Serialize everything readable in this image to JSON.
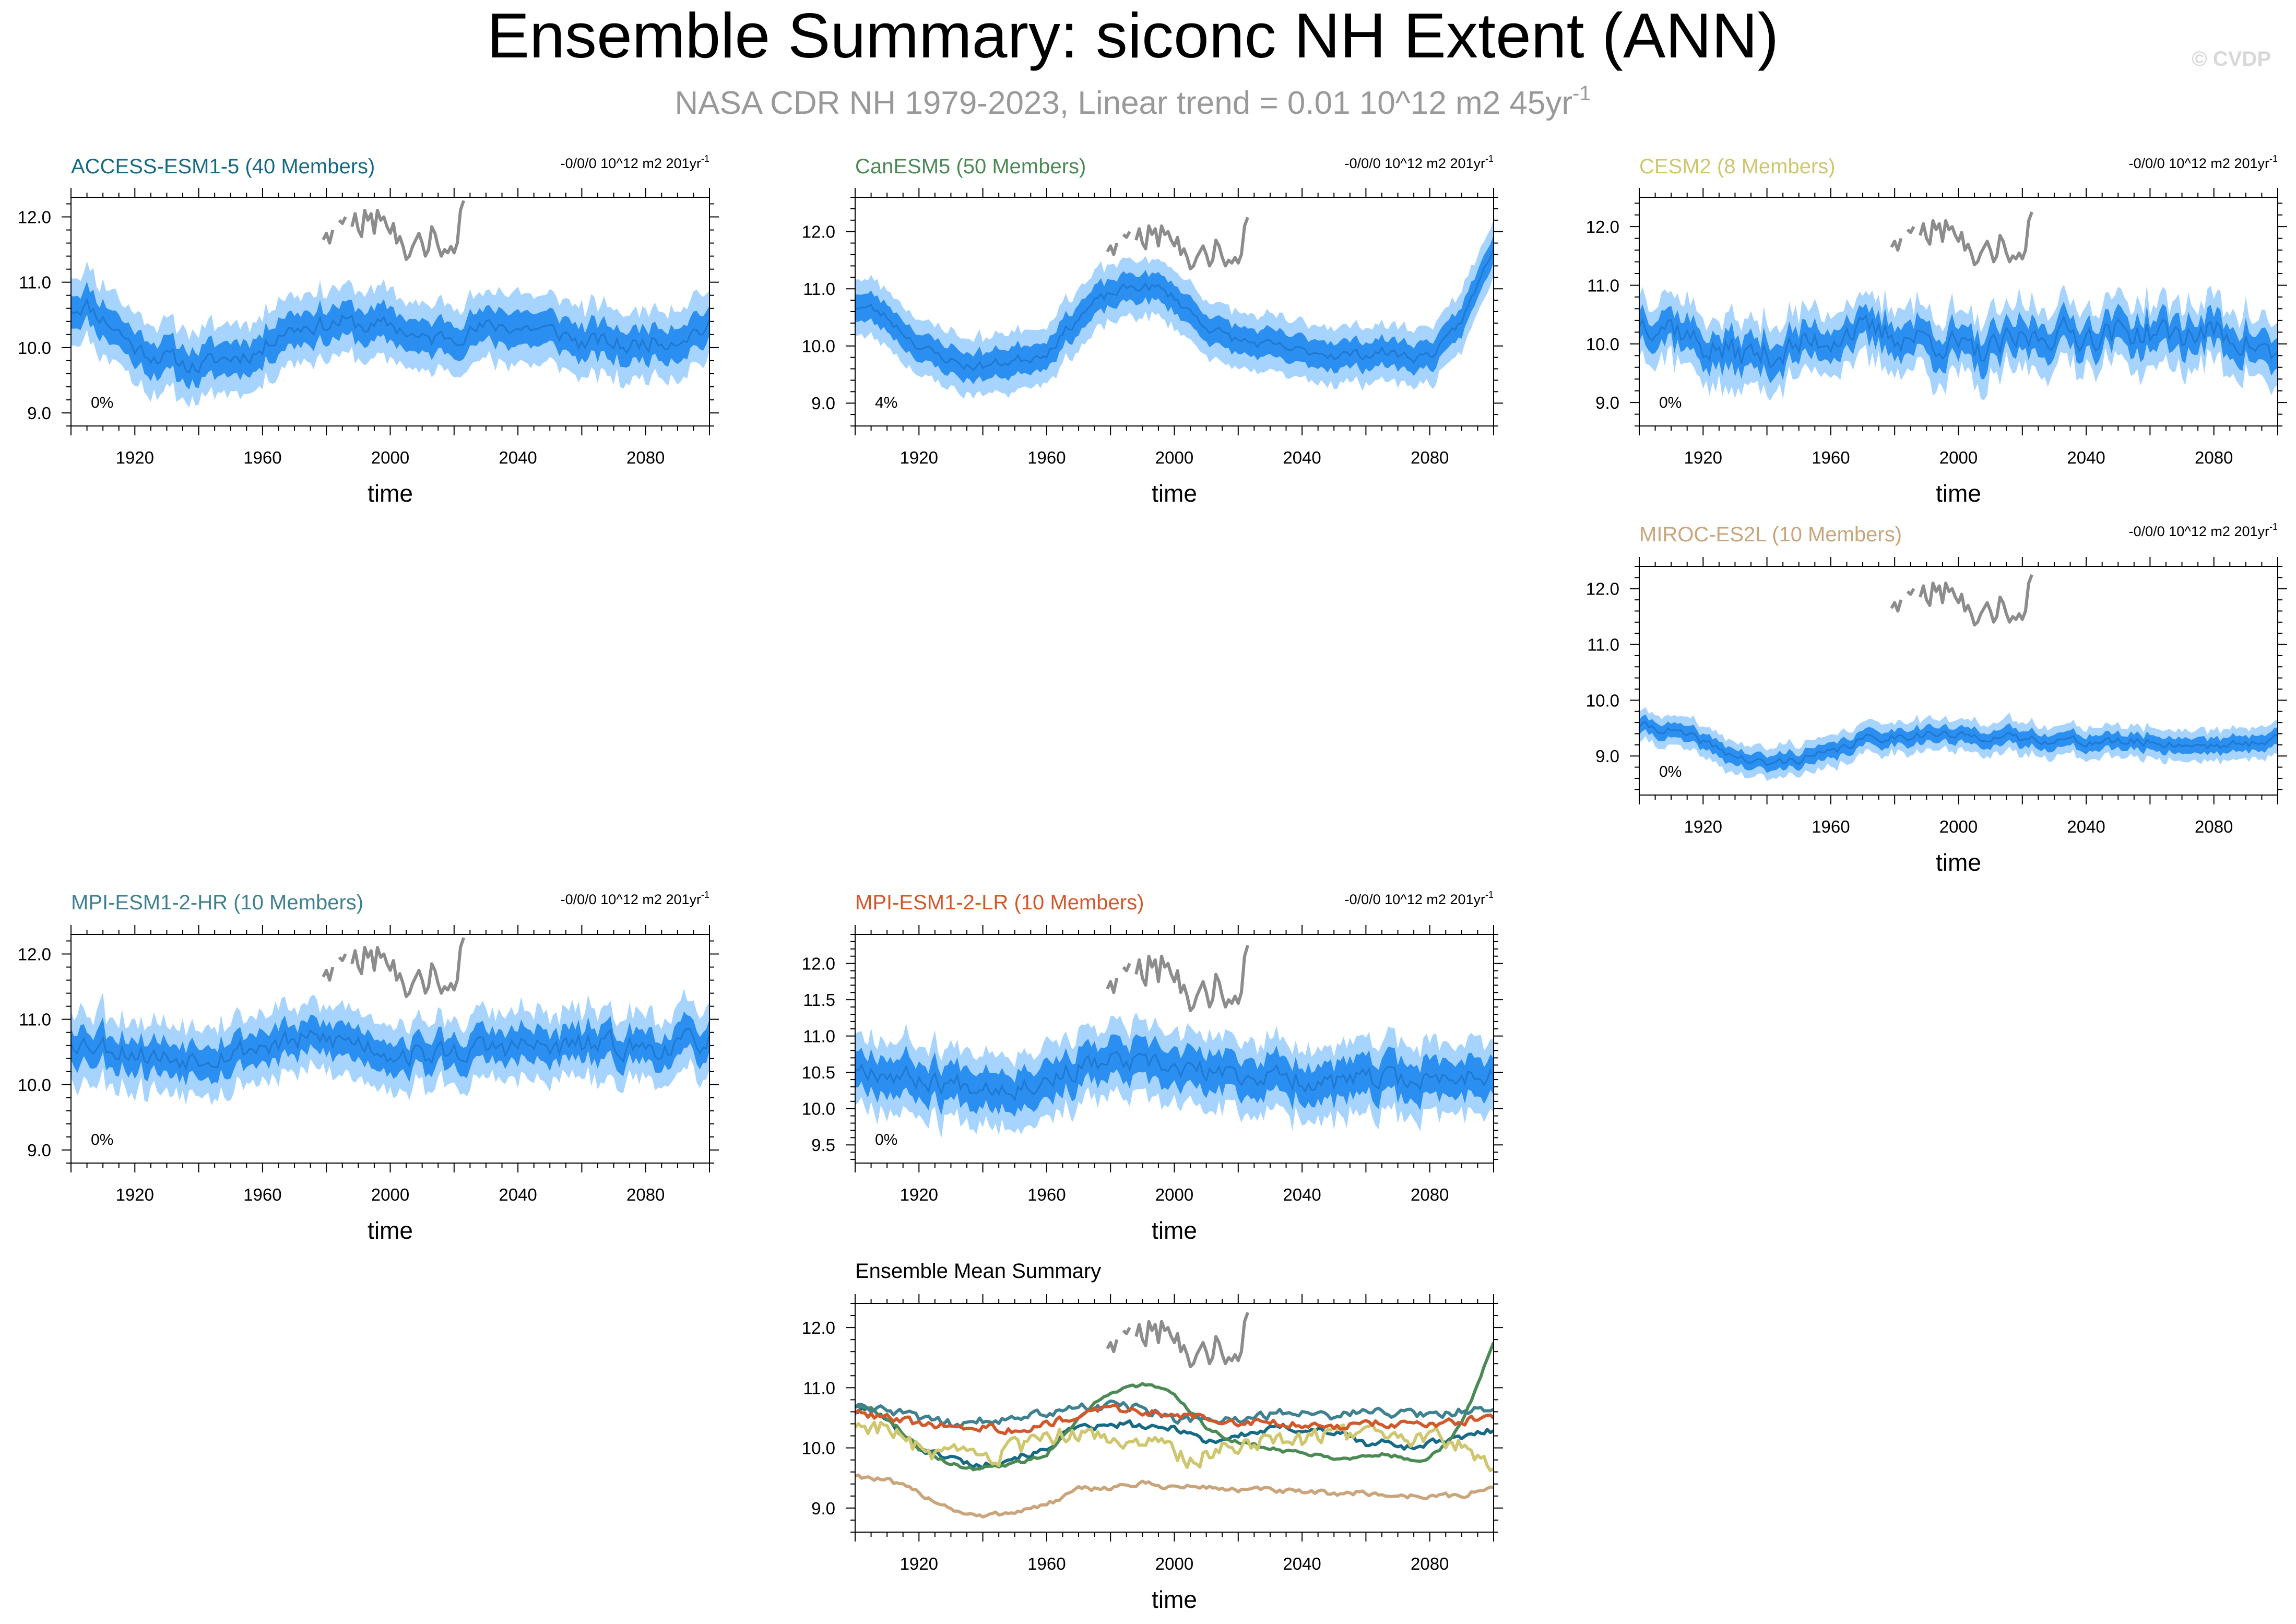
{
  "figure": {
    "title": "Ensemble Summary: siconc NH Extent (ANN)",
    "subtitle_main": "NASA CDR NH 1979-2023, Linear trend = 0.01 10^12 m2 45yr",
    "subtitle_sup": "-1",
    "watermark": "© CVDP"
  },
  "colors": {
    "spread_outer": "#a6d4ff",
    "spread_inner": "#2a8ff0",
    "mean_line": "#1f78d1",
    "obs": "#8c8c8c",
    "access": "#176a86",
    "canesm": "#4c8a55",
    "cesm": "#cfc670",
    "miroc": "#caa47a",
    "mpi_hr": "#3f8191",
    "mpi_lr": "#d2582b"
  },
  "chart_data": [
    {
      "type": "area",
      "id": "access",
      "title": "ACCESS-ESM1-5 (40 Members)",
      "trend": "-0/0/0 10^12 m2 201yr",
      "trend_sup": "-1",
      "pct": "0%",
      "xlabel": "time",
      "xlim": [
        1900,
        2100
      ],
      "ylim": [
        8.8,
        12.3
      ],
      "yticks": [
        "9.0",
        "10.0",
        "11.0",
        "12.0"
      ],
      "xticks": [
        "1920",
        "1960",
        "2000",
        "2040",
        "2080"
      ],
      "mean_curve": [
        [
          1900,
          10.6
        ],
        [
          1905,
          10.65
        ],
        [
          1910,
          10.45
        ],
        [
          1915,
          10.25
        ],
        [
          1920,
          10.0
        ],
        [
          1925,
          9.9
        ],
        [
          1930,
          9.85
        ],
        [
          1935,
          9.75
        ],
        [
          1940,
          9.7
        ],
        [
          1945,
          9.8
        ],
        [
          1950,
          9.85
        ],
        [
          1955,
          9.9
        ],
        [
          1960,
          9.95
        ],
        [
          1965,
          10.25
        ],
        [
          1970,
          10.3
        ],
        [
          1975,
          10.35
        ],
        [
          1980,
          10.35
        ],
        [
          1985,
          10.4
        ],
        [
          1990,
          10.35
        ],
        [
          1995,
          10.3
        ],
        [
          2000,
          10.35
        ],
        [
          2005,
          10.25
        ],
        [
          2010,
          10.1
        ],
        [
          2015,
          10.15
        ],
        [
          2020,
          10.2
        ],
        [
          2025,
          10.25
        ],
        [
          2030,
          10.3
        ],
        [
          2035,
          10.35
        ],
        [
          2040,
          10.3
        ],
        [
          2045,
          10.3
        ],
        [
          2050,
          10.25
        ],
        [
          2055,
          10.2
        ],
        [
          2060,
          10.05
        ],
        [
          2065,
          10.1
        ],
        [
          2070,
          10.05
        ],
        [
          2075,
          10.0
        ],
        [
          2080,
          10.1
        ],
        [
          2085,
          10.1
        ],
        [
          2090,
          10.15
        ],
        [
          2095,
          10.25
        ],
        [
          2100,
          10.3
        ]
      ],
      "inner_halfwidth": 0.22,
      "outer_halfwidth": 0.45,
      "noise_amp": 0.12,
      "seed": 11
    },
    {
      "type": "area",
      "id": "canesm",
      "title": "CanESM5 (50 Members)",
      "trend": "-0/0/0 10^12 m2 201yr",
      "trend_sup": "-1",
      "pct": "4%",
      "xlabel": "time",
      "xlim": [
        1900,
        2100
      ],
      "ylim": [
        8.6,
        12.6
      ],
      "yticks": [
        "9.0",
        "10.0",
        "11.0",
        "12.0"
      ],
      "xticks": [
        "1920",
        "1960",
        "2000",
        "2040",
        "2080"
      ],
      "mean_curve": [
        [
          1900,
          10.7
        ],
        [
          1905,
          10.65
        ],
        [
          1910,
          10.5
        ],
        [
          1915,
          10.25
        ],
        [
          1920,
          10.0
        ],
        [
          1925,
          9.85
        ],
        [
          1930,
          9.75
        ],
        [
          1935,
          9.65
        ],
        [
          1940,
          9.65
        ],
        [
          1945,
          9.7
        ],
        [
          1950,
          9.75
        ],
        [
          1955,
          9.8
        ],
        [
          1960,
          9.9
        ],
        [
          1965,
          10.2
        ],
        [
          1970,
          10.5
        ],
        [
          1975,
          10.75
        ],
        [
          1980,
          10.9
        ],
        [
          1985,
          11.0
        ],
        [
          1990,
          11.05
        ],
        [
          1995,
          11.0
        ],
        [
          2000,
          10.85
        ],
        [
          2005,
          10.6
        ],
        [
          2010,
          10.35
        ],
        [
          2015,
          10.2
        ],
        [
          2020,
          10.1
        ],
        [
          2025,
          10.05
        ],
        [
          2030,
          10.0
        ],
        [
          2035,
          9.95
        ],
        [
          2040,
          9.9
        ],
        [
          2045,
          9.9
        ],
        [
          2050,
          9.85
        ],
        [
          2055,
          9.85
        ],
        [
          2060,
          9.85
        ],
        [
          2065,
          9.9
        ],
        [
          2070,
          9.85
        ],
        [
          2075,
          9.8
        ],
        [
          2080,
          9.85
        ],
        [
          2085,
          10.05
        ],
        [
          2090,
          10.45
        ],
        [
          2095,
          11.05
        ],
        [
          2100,
          11.75
        ]
      ],
      "inner_halfwidth": 0.22,
      "outer_halfwidth": 0.45,
      "noise_amp": 0.08,
      "seed": 23
    },
    {
      "type": "area",
      "id": "cesm",
      "title": "CESM2 (8 Members)",
      "trend": "-0/0/0 10^12 m2 201yr",
      "trend_sup": "-1",
      "pct": "0%",
      "xlabel": "time",
      "xlim": [
        1900,
        2100
      ],
      "ylim": [
        8.6,
        12.5
      ],
      "yticks": [
        "9.0",
        "10.0",
        "11.0",
        "12.0"
      ],
      "xticks": [
        "1920",
        "1960",
        "2000",
        "2040",
        "2080"
      ],
      "mean_curve": [
        [
          1900,
          10.4
        ],
        [
          1910,
          10.35
        ],
        [
          1920,
          9.95
        ],
        [
          1930,
          9.85
        ],
        [
          1940,
          9.8
        ],
        [
          1950,
          9.95
        ],
        [
          1960,
          10.1
        ],
        [
          1965,
          10.25
        ],
        [
          1970,
          10.2
        ],
        [
          1980,
          10.15
        ],
        [
          1990,
          10.1
        ],
        [
          2000,
          9.95
        ],
        [
          2005,
          9.8
        ],
        [
          2010,
          9.9
        ],
        [
          2020,
          10.05
        ],
        [
          2030,
          10.2
        ],
        [
          2040,
          10.15
        ],
        [
          2050,
          10.2
        ],
        [
          2060,
          10.2
        ],
        [
          2070,
          10.15
        ],
        [
          2080,
          10.2
        ],
        [
          2090,
          10.05
        ],
        [
          2100,
          9.75
        ]
      ],
      "inner_halfwidth": 0.2,
      "outer_halfwidth": 0.4,
      "noise_amp": 0.22,
      "seed": 37
    },
    {
      "type": "area",
      "id": "miroc",
      "title": "MIROC-ES2L (10 Members)",
      "trend": "-0/0/0 10^12 m2 201yr",
      "trend_sup": "-1",
      "pct": "0%",
      "xlabel": "time",
      "xlim": [
        1900,
        2100
      ],
      "ylim": [
        8.3,
        12.4
      ],
      "yticks": [
        "9.0",
        "10.0",
        "11.0",
        "12.0"
      ],
      "xticks": [
        "1920",
        "1960",
        "2000",
        "2040",
        "2080"
      ],
      "mean_curve": [
        [
          1900,
          9.55
        ],
        [
          1910,
          9.45
        ],
        [
          1920,
          9.25
        ],
        [
          1930,
          9.0
        ],
        [
          1935,
          8.9
        ],
        [
          1940,
          8.85
        ],
        [
          1950,
          8.95
        ],
        [
          1960,
          9.05
        ],
        [
          1970,
          9.3
        ],
        [
          1980,
          9.35
        ],
        [
          1990,
          9.4
        ],
        [
          2000,
          9.35
        ],
        [
          2010,
          9.35
        ],
        [
          2020,
          9.3
        ],
        [
          2030,
          9.3
        ],
        [
          2040,
          9.25
        ],
        [
          2050,
          9.25
        ],
        [
          2060,
          9.25
        ],
        [
          2070,
          9.2
        ],
        [
          2080,
          9.2
        ],
        [
          2090,
          9.2
        ],
        [
          2100,
          9.35
        ]
      ],
      "inner_halfwidth": 0.12,
      "outer_halfwidth": 0.24,
      "noise_amp": 0.07,
      "seed": 41
    },
    {
      "type": "area",
      "id": "mpihr",
      "title": "MPI-ESM1-2-HR (10 Members)",
      "trend": "-0/0/0 10^12 m2 201yr",
      "trend_sup": "-1",
      "pct": "0%",
      "xlabel": "time",
      "xlim": [
        1900,
        2100
      ],
      "ylim": [
        8.8,
        12.3
      ],
      "yticks": [
        "9.0",
        "10.0",
        "11.0",
        "12.0"
      ],
      "xticks": [
        "1920",
        "1960",
        "2000",
        "2040",
        "2080"
      ],
      "mean_curve": [
        [
          1900,
          10.7
        ],
        [
          1910,
          10.6
        ],
        [
          1920,
          10.5
        ],
        [
          1930,
          10.4
        ],
        [
          1940,
          10.45
        ],
        [
          1950,
          10.5
        ],
        [
          1960,
          10.6
        ],
        [
          1970,
          10.65
        ],
        [
          1980,
          10.7
        ],
        [
          1990,
          10.65
        ],
        [
          2000,
          10.5
        ],
        [
          2010,
          10.45
        ],
        [
          2020,
          10.5
        ],
        [
          2030,
          10.55
        ],
        [
          2040,
          10.6
        ],
        [
          2050,
          10.55
        ],
        [
          2060,
          10.6
        ],
        [
          2070,
          10.6
        ],
        [
          2080,
          10.55
        ],
        [
          2090,
          10.6
        ],
        [
          2100,
          10.7
        ]
      ],
      "inner_halfwidth": 0.2,
      "outer_halfwidth": 0.42,
      "noise_amp": 0.16,
      "seed": 53
    },
    {
      "type": "area",
      "id": "mpilr",
      "title": "MPI-ESM1-2-LR (10 Members)",
      "trend": "-0/0/0 10^12 m2 201yr",
      "trend_sup": "-1",
      "pct": "0%",
      "xlabel": "time",
      "xlim": [
        1900,
        2100
      ],
      "ylim": [
        9.25,
        12.4
      ],
      "yticks": [
        "9.5",
        "10.0",
        "10.5",
        "11.0",
        "11.5",
        "12.0"
      ],
      "xticks": [
        "1920",
        "1960",
        "2000",
        "2040",
        "2080"
      ],
      "mean_curve": [
        [
          1900,
          10.6
        ],
        [
          1910,
          10.5
        ],
        [
          1920,
          10.4
        ],
        [
          1930,
          10.35
        ],
        [
          1940,
          10.35
        ],
        [
          1950,
          10.3
        ],
        [
          1960,
          10.4
        ],
        [
          1970,
          10.55
        ],
        [
          1980,
          10.65
        ],
        [
          1990,
          10.6
        ],
        [
          2000,
          10.55
        ],
        [
          2010,
          10.5
        ],
        [
          2020,
          10.45
        ],
        [
          2030,
          10.45
        ],
        [
          2040,
          10.4
        ],
        [
          2050,
          10.35
        ],
        [
          2060,
          10.4
        ],
        [
          2070,
          10.4
        ],
        [
          2080,
          10.4
        ],
        [
          2090,
          10.45
        ],
        [
          2100,
          10.5
        ]
      ],
      "inner_halfwidth": 0.22,
      "outer_halfwidth": 0.42,
      "noise_amp": 0.13,
      "seed": 67
    },
    {
      "type": "line",
      "id": "summary",
      "title": "Ensemble Mean Summary",
      "xlabel": "time",
      "xlim": [
        1900,
        2100
      ],
      "ylim": [
        8.6,
        12.4
      ],
      "yticks": [
        "9.0",
        "10.0",
        "11.0",
        "12.0"
      ],
      "xticks": [
        "1920",
        "1960",
        "2000",
        "2040",
        "2080"
      ],
      "series": [
        {
          "name": "ACCESS-ESM1-5",
          "color_key": "access",
          "from": "access",
          "noise": 0.05,
          "seed": 101
        },
        {
          "name": "CanESM5",
          "color_key": "canesm",
          "from": "canesm",
          "noise": 0.03,
          "seed": 102
        },
        {
          "name": "CESM2",
          "color_key": "cesm",
          "from": "cesm",
          "noise": 0.14,
          "seed": 103
        },
        {
          "name": "MIROC-ES2L",
          "color_key": "miroc",
          "from": "miroc",
          "noise": 0.04,
          "seed": 104
        },
        {
          "name": "MPI-ESM1-2-HR",
          "color_key": "mpi_hr",
          "from": "mpihr",
          "noise": 0.07,
          "seed": 105
        },
        {
          "name": "MPI-ESM1-2-LR",
          "color_key": "mpi_lr",
          "from": "mpilr",
          "noise": 0.06,
          "seed": 106
        }
      ]
    }
  ],
  "observations": {
    "name": "NASA CDR NH 1979-2023",
    "x": [
      1979,
      1980,
      1981,
      1982,
      1983,
      1984,
      1985,
      1986,
      1987,
      1988,
      1989,
      1990,
      1991,
      1992,
      1993,
      1994,
      1995,
      1996,
      1997,
      1998,
      1999,
      2000,
      2001,
      2002,
      2003,
      2004,
      2005,
      2006,
      2007,
      2008,
      2009,
      2010,
      2011,
      2012,
      2013,
      2014,
      2015,
      2016,
      2017,
      2018,
      2019,
      2020,
      2021,
      2022,
      2023
    ],
    "y": [
      11.65,
      11.75,
      11.6,
      11.8,
      null,
      11.95,
      11.9,
      12.0,
      null,
      11.85,
      12.05,
      11.8,
      11.7,
      12.1,
      11.95,
      12.05,
      11.75,
      12.1,
      11.95,
      12.0,
      11.85,
      11.75,
      11.9,
      11.6,
      11.7,
      11.55,
      11.35,
      11.4,
      11.55,
      11.65,
      11.75,
      11.6,
      11.4,
      11.5,
      11.85,
      11.75,
      11.55,
      11.4,
      11.5,
      11.45,
      11.55,
      11.45,
      11.6,
      12.1,
      12.25
    ]
  }
}
